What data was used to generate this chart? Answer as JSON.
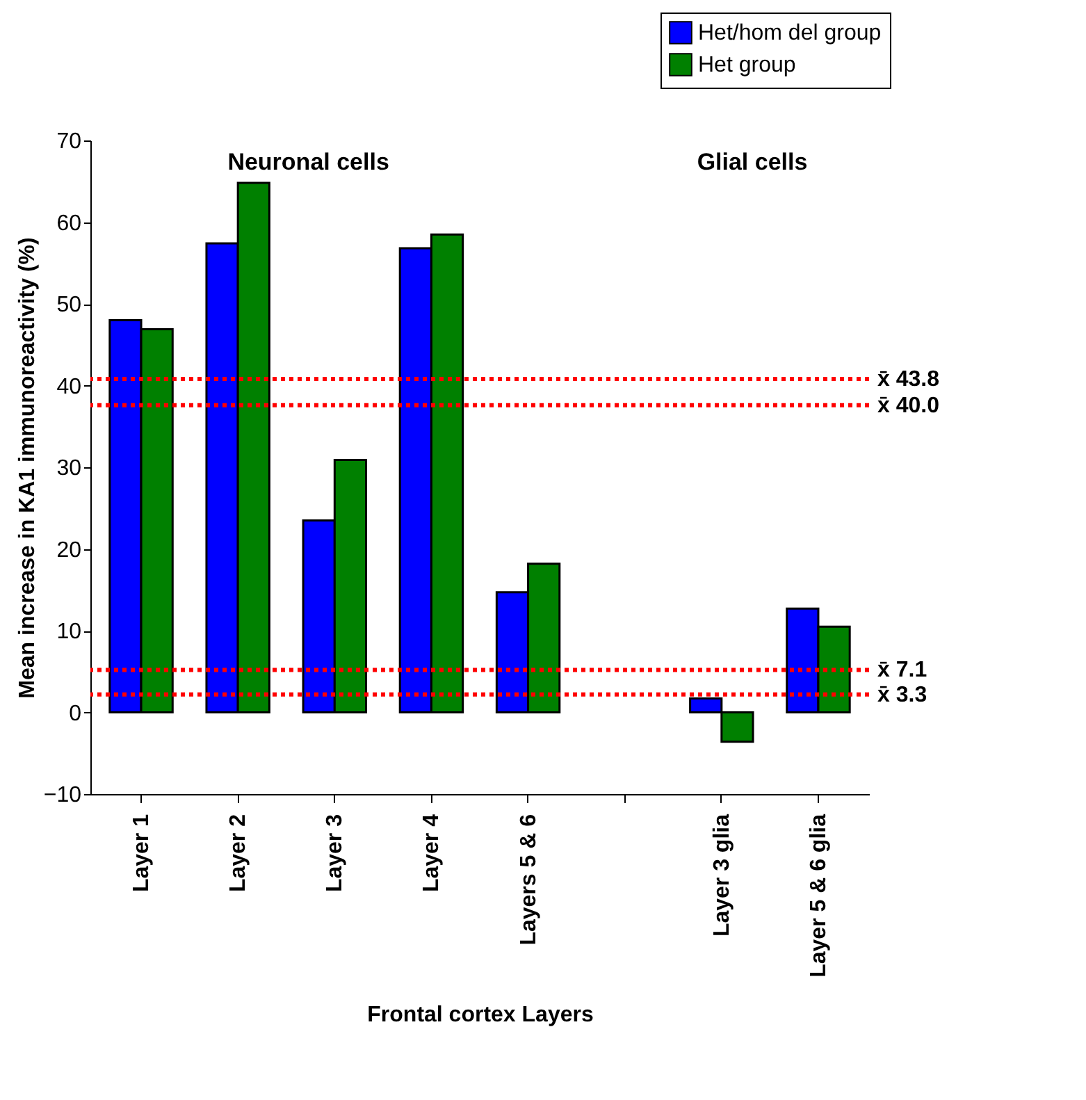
{
  "chart_data": {
    "type": "bar",
    "xlabel": "Frontal cortex Layers",
    "ylabel": "Mean increase in KA1 immunoreactivity (%)",
    "categories": [
      "Layer 1",
      "Layer 2",
      "Layer 3",
      "Layer 4",
      "Layers 5 & 6",
      null,
      "Layer 3 glia",
      "Layer 5 & 6  glia"
    ],
    "series": [
      {
        "name": "Het/hom del group",
        "color": "#0000ff",
        "values": [
          48.0,
          57.4,
          23.5,
          56.8,
          14.7,
          null,
          1.7,
          12.7
        ]
      },
      {
        "name": "Het group",
        "color": "#008000",
        "values": [
          46.9,
          64.8,
          30.9,
          58.5,
          18.2,
          null,
          -3.6,
          10.5
        ]
      }
    ],
    "ylim": [
      -10,
      70
    ],
    "yticks": [
      -10,
      0,
      10,
      20,
      30,
      40,
      50,
      60,
      70
    ],
    "legend": "top right",
    "ref_lines": [
      {
        "axis": "y",
        "value": 40.8,
        "label": "x̄ 43.8",
        "color": "#ff0000",
        "line_style": "dotted"
      },
      {
        "axis": "y",
        "value": 37.6,
        "label": "x̄ 40.0",
        "color": "#ff0000",
        "line_style": "dotted"
      },
      {
        "axis": "y",
        "value": 5.2,
        "label": "x̄ 7.1",
        "color": "#ff0000",
        "line_style": "dotted"
      },
      {
        "axis": "y",
        "value": 2.2,
        "label": "x̄ 3.3",
        "color": "#ff0000",
        "line_style": "dotted"
      }
    ],
    "annotations": [
      "Neuronal cells",
      "Glial cells"
    ]
  }
}
